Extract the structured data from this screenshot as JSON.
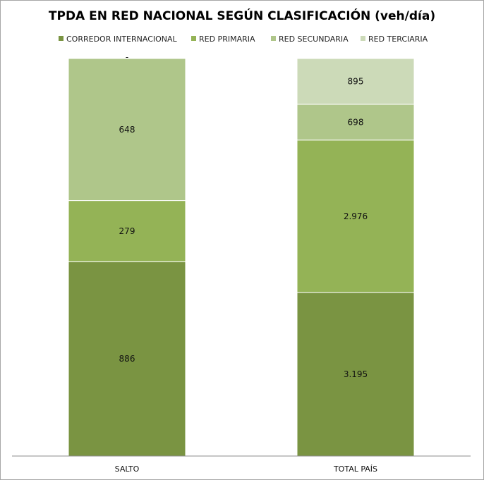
{
  "chart_data": {
    "type": "bar",
    "stacked": "percent",
    "title": "TPDA EN RED NACIONAL SEGÚN CLASIFICACIÓN (veh/día)",
    "categories": [
      "SALTO",
      "TOTAL PAÍS"
    ],
    "series": [
      {
        "name": "CORREDOR INTERNACIONAL",
        "color": "#7a9442",
        "values": [
          886,
          3195
        ],
        "labels": [
          "886",
          "3.195"
        ]
      },
      {
        "name": "RED PRIMARIA",
        "color": "#94b356",
        "values": [
          279,
          2976
        ],
        "labels": [
          "279",
          "2.976"
        ]
      },
      {
        "name": "RED SECUNDARIA",
        "color": "#afc68a",
        "values": [
          648,
          698
        ],
        "labels": [
          "648",
          "698"
        ]
      },
      {
        "name": "RED TERCIARIA",
        "color": "#ccdab8",
        "values": [
          0,
          895
        ],
        "labels": [
          "-",
          "895"
        ]
      }
    ],
    "legend": "top",
    "grid": false
  }
}
